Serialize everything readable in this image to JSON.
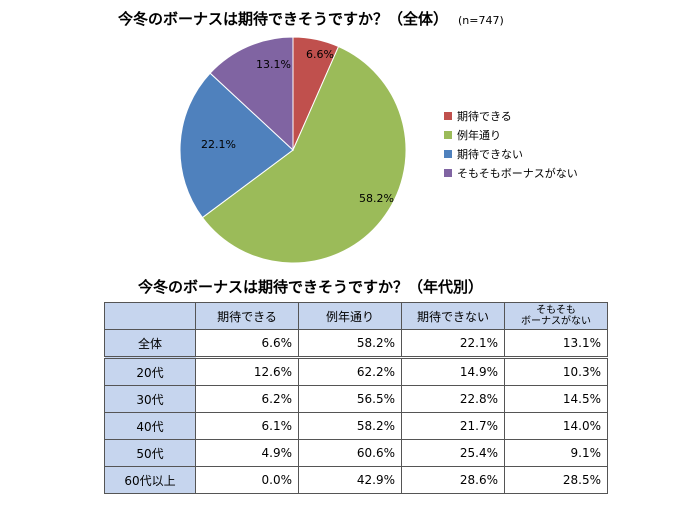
{
  "pie_title": {
    "text": "今冬のボーナスは期待できそうですか？（全体）",
    "n": "(n=747)"
  },
  "table_title": "今冬のボーナスは期待できそうですか？（年代別）",
  "colors": {
    "期待できる": "#c0504d",
    "例年通り": "#9bbb59",
    "期待できない": "#4f81bd",
    "そもそもボーナスがない": "#8064a2"
  },
  "chart_data": [
    {
      "type": "pie",
      "title": "今冬のボーナスは期待できそうですか？（全体）",
      "subtitle": "(n=747)",
      "labels": [
        "期待できる",
        "例年通り",
        "期待できない",
        "そもそもボーナスがない"
      ],
      "values": [
        6.6,
        58.2,
        22.1,
        13.1
      ],
      "value_labels": [
        "6.6%",
        "58.2%",
        "22.1%",
        "13.1%"
      ],
      "legend_position": "right"
    },
    {
      "type": "table",
      "title": "今冬のボーナスは期待できそうですか？（年代別）",
      "columns": [
        "",
        "期待できる",
        "例年通り",
        "期待できない",
        "そもそも\nボーナスがない"
      ],
      "rows": [
        [
          "全体",
          "6.6%",
          "58.2%",
          "22.1%",
          "13.1%"
        ],
        [
          "20代",
          "12.6%",
          "62.2%",
          "14.9%",
          "10.3%"
        ],
        [
          "30代",
          "6.2%",
          "56.5%",
          "22.8%",
          "14.5%"
        ],
        [
          "40代",
          "6.1%",
          "58.2%",
          "21.7%",
          "14.0%"
        ],
        [
          "50代",
          "4.9%",
          "60.6%",
          "25.4%",
          "9.1%"
        ],
        [
          "60代以上",
          "0.0%",
          "42.9%",
          "28.6%",
          "28.5%"
        ]
      ]
    }
  ]
}
